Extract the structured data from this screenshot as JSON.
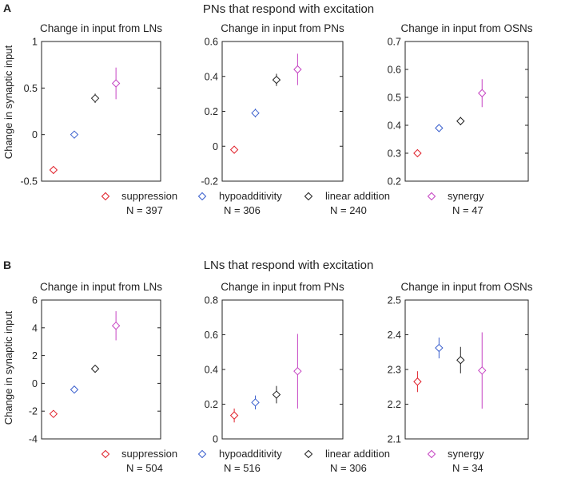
{
  "figure": {
    "sections": [
      {
        "letter": "A",
        "title": "PNs that respond with excitation"
      },
      {
        "letter": "B",
        "title": "LNs that respond with excitation"
      }
    ]
  },
  "colors": {
    "suppression": "#e0202a",
    "hypoadditivity": "#3a5fcd",
    "linear addition": "#222222",
    "synergy": "#c542c2"
  },
  "chart_data": [
    {
      "type": "scatter",
      "section": "A",
      "title": "Change in input from LNs",
      "ylabel": "Change in synaptic input",
      "xlabel": "",
      "ylim": [
        -0.5,
        1
      ],
      "yticks": [
        -0.5,
        0,
        0.5,
        1
      ],
      "tick_labels": [
        "-0.5",
        "0",
        "0.5",
        "1"
      ],
      "series": [
        {
          "name": "suppression",
          "x": 1,
          "y": -0.38,
          "err": 0.02
        },
        {
          "name": "hypoadditivity",
          "x": 2,
          "y": 0.0,
          "err": 0.03
        },
        {
          "name": "linear addition",
          "x": 3,
          "y": 0.39,
          "err": 0.05
        },
        {
          "name": "synergy",
          "x": 4,
          "y": 0.55,
          "err": 0.17
        }
      ]
    },
    {
      "type": "scatter",
      "section": "A",
      "title": "Change in input from PNs",
      "ylabel": "",
      "xlabel": "",
      "ylim": [
        -0.2,
        0.6
      ],
      "yticks": [
        -0.2,
        0,
        0.2,
        0.4,
        0.6
      ],
      "tick_labels": [
        "-0.2",
        "0",
        "0.2",
        "0.4",
        "0.6"
      ],
      "series": [
        {
          "name": "suppression",
          "x": 1,
          "y": -0.02,
          "err": 0.01
        },
        {
          "name": "hypoadditivity",
          "x": 2,
          "y": 0.19,
          "err": 0.025
        },
        {
          "name": "linear addition",
          "x": 3,
          "y": 0.38,
          "err": 0.035
        },
        {
          "name": "synergy",
          "x": 4,
          "y": 0.44,
          "err": 0.09
        }
      ]
    },
    {
      "type": "scatter",
      "section": "A",
      "title": "Change in input from OSNs",
      "ylabel": "",
      "xlabel": "",
      "ylim": [
        0.2,
        0.7
      ],
      "yticks": [
        0.2,
        0.3,
        0.4,
        0.5,
        0.6,
        0.7
      ],
      "tick_labels": [
        "0.2",
        "0.3",
        "0.4",
        "0.5",
        "0.6",
        "0.7"
      ],
      "series": [
        {
          "name": "suppression",
          "x": 1,
          "y": 0.3,
          "err": 0.006
        },
        {
          "name": "hypoadditivity",
          "x": 2,
          "y": 0.39,
          "err": 0.01
        },
        {
          "name": "linear addition",
          "x": 3,
          "y": 0.415,
          "err": 0.015
        },
        {
          "name": "synergy",
          "x": 4,
          "y": 0.515,
          "err": 0.05
        }
      ]
    },
    {
      "type": "scatter",
      "section": "B",
      "title": "Change in input from LNs",
      "ylabel": "Change in synaptic input",
      "xlabel": "",
      "ylim": [
        -4,
        6
      ],
      "yticks": [
        -4,
        -2,
        0,
        2,
        4,
        6
      ],
      "tick_labels": [
        "-4",
        "-2",
        "0",
        "2",
        "4",
        "6"
      ],
      "series": [
        {
          "name": "suppression",
          "x": 1,
          "y": -2.2,
          "err": 0.15
        },
        {
          "name": "hypoadditivity",
          "x": 2,
          "y": -0.45,
          "err": 0.2
        },
        {
          "name": "linear addition",
          "x": 3,
          "y": 1.05,
          "err": 0.2
        },
        {
          "name": "synergy",
          "x": 4,
          "y": 4.15,
          "err": 1.05
        }
      ]
    },
    {
      "type": "scatter",
      "section": "B",
      "title": "Change in input from PNs",
      "ylabel": "",
      "xlabel": "",
      "ylim": [
        0,
        0.8
      ],
      "yticks": [
        0,
        0.2,
        0.4,
        0.6,
        0.8
      ],
      "tick_labels": [
        "0",
        "0.2",
        "0.4",
        "0.6",
        "0.8"
      ],
      "series": [
        {
          "name": "suppression",
          "x": 1,
          "y": 0.135,
          "err": 0.04
        },
        {
          "name": "hypoadditivity",
          "x": 2,
          "y": 0.21,
          "err": 0.04
        },
        {
          "name": "linear addition",
          "x": 3,
          "y": 0.255,
          "err": 0.05
        },
        {
          "name": "synergy",
          "x": 4,
          "y": 0.39,
          "err": 0.215
        }
      ]
    },
    {
      "type": "scatter",
      "section": "B",
      "title": "Change in input from OSNs",
      "ylabel": "",
      "xlabel": "",
      "ylim": [
        2.1,
        2.5
      ],
      "yticks": [
        2.1,
        2.2,
        2.3,
        2.4,
        2.5
      ],
      "tick_labels": [
        "2.1",
        "2.2",
        "2.3",
        "2.4",
        "2.5"
      ],
      "series": [
        {
          "name": "suppression",
          "x": 1,
          "y": 2.265,
          "err": 0.03
        },
        {
          "name": "hypoadditivity",
          "x": 2,
          "y": 2.362,
          "err": 0.03
        },
        {
          "name": "linear addition",
          "x": 3,
          "y": 2.327,
          "err": 0.038
        },
        {
          "name": "synergy",
          "x": 4,
          "y": 2.297,
          "err": 0.11
        }
      ]
    }
  ],
  "legends": [
    {
      "section": "A",
      "items": [
        {
          "name": "suppression",
          "label": "suppression",
          "n": "N = 397"
        },
        {
          "name": "hypoadditivity",
          "label": "hypoadditivity",
          "n": "N = 306"
        },
        {
          "name": "linear addition",
          "label": "linear addition",
          "n": "N = 240"
        },
        {
          "name": "synergy",
          "label": "synergy",
          "n": "N = 47"
        }
      ]
    },
    {
      "section": "B",
      "items": [
        {
          "name": "suppression",
          "label": "suppression",
          "n": "N = 504"
        },
        {
          "name": "hypoadditivity",
          "label": "hypoadditivity",
          "n": "N = 516"
        },
        {
          "name": "linear addition",
          "label": "linear addition",
          "n": "N = 306"
        },
        {
          "name": "synergy",
          "label": "synergy",
          "n": "N = 34"
        }
      ]
    }
  ]
}
